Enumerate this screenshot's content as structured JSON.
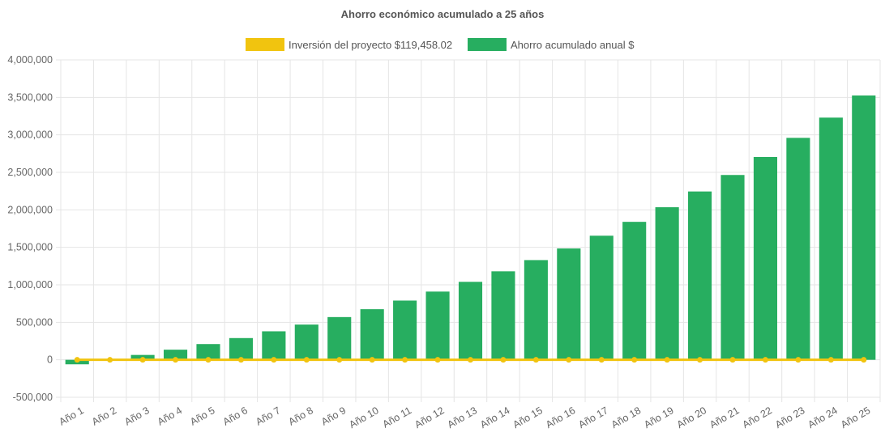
{
  "chart_data": {
    "type": "bar",
    "title": "Ahorro económico acumulado a 25 años",
    "categories": [
      "Año 1",
      "Año 2",
      "Año 3",
      "Año 4",
      "Año 5",
      "Año 6",
      "Año 7",
      "Año 8",
      "Año 9",
      "Año 10",
      "Año 11",
      "Año 12",
      "Año 13",
      "Año 14",
      "Año 15",
      "Año 16",
      "Año 17",
      "Año 18",
      "Año 19",
      "Año 20",
      "Año 21",
      "Año 22",
      "Año 23",
      "Año 24",
      "Año 25"
    ],
    "series": [
      {
        "name": "Inversión del proyecto $119,458.02",
        "kind": "line",
        "color": "#f1c40f",
        "values": [
          0,
          0,
          0,
          0,
          0,
          0,
          0,
          0,
          0,
          0,
          0,
          0,
          0,
          0,
          0,
          0,
          0,
          0,
          0,
          0,
          0,
          0,
          0,
          0,
          0
        ]
      },
      {
        "name": "Ahorro acumulado anual $",
        "kind": "bar",
        "color": "#27ae60",
        "values": [
          -60000,
          5000,
          65000,
          135000,
          210000,
          290000,
          380000,
          470000,
          570000,
          675000,
          790000,
          910000,
          1040000,
          1180000,
          1330000,
          1485000,
          1655000,
          1840000,
          2035000,
          2245000,
          2465000,
          2705000,
          2960000,
          3230000,
          3525000
        ]
      }
    ],
    "ylim": [
      -500000,
      4000000
    ],
    "yticks": [
      "4,000,000",
      "3,500,000",
      "3,000,000",
      "2,500,000",
      "2,000,000",
      "1,500,000",
      "1,000,000",
      "500,000",
      "0",
      "-500,000"
    ],
    "ytick_values": [
      4000000,
      3500000,
      3000000,
      2500000,
      2000000,
      1500000,
      1000000,
      500000,
      0,
      -500000
    ],
    "grid": true,
    "legend_position": "top-center"
  }
}
